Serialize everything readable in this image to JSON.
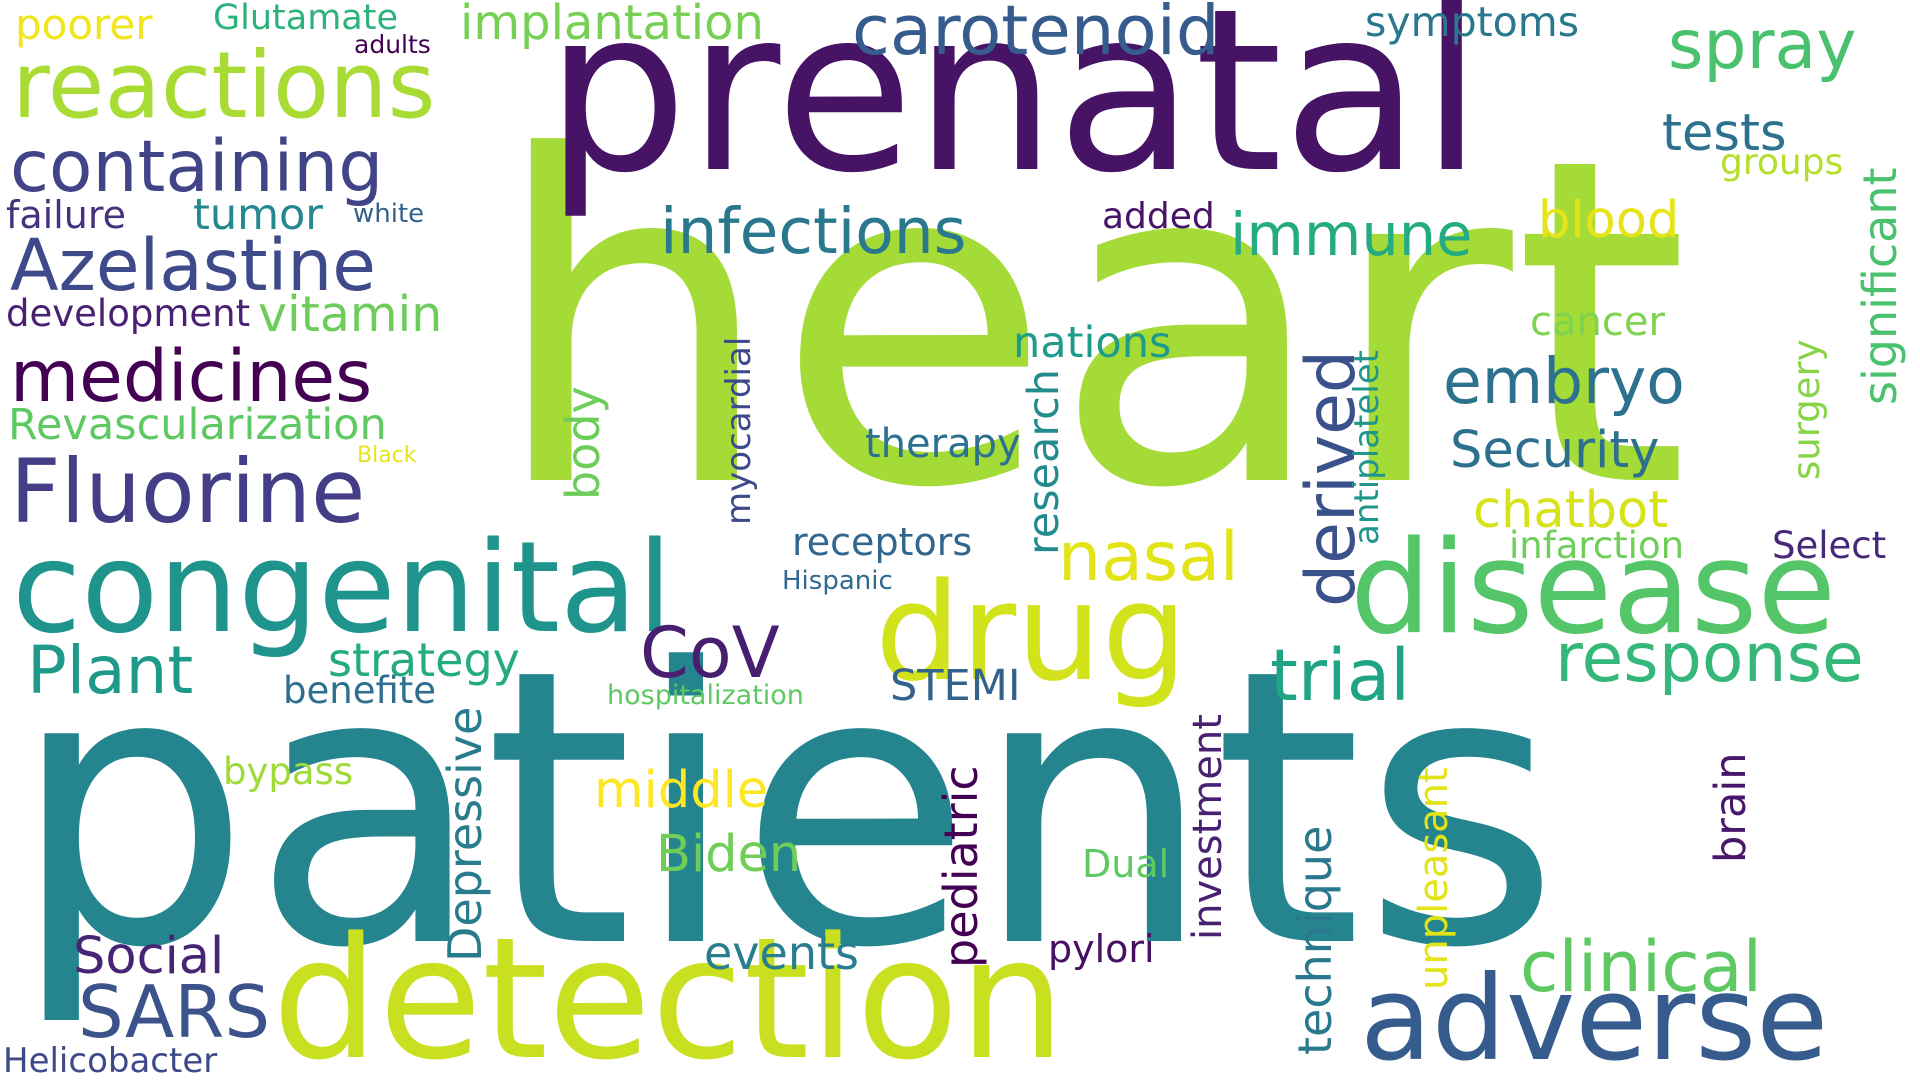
{
  "words": [
    {
      "text": "heart",
      "color": "#a5db36"
    },
    {
      "text": "patients",
      "color": "#25858e"
    },
    {
      "text": "prenatal",
      "color": "#471365"
    },
    {
      "text": "detection",
      "color": "#c8e020"
    },
    {
      "text": "disease",
      "color": "#54c568"
    },
    {
      "text": "congenital",
      "color": "#1f948c"
    },
    {
      "text": "adverse",
      "color": "#365c8d"
    },
    {
      "text": "drug",
      "color": "#d2e21b"
    },
    {
      "text": "reactions",
      "color": "#a8db34"
    },
    {
      "text": "containing",
      "color": "#414487"
    },
    {
      "text": "Fluorine",
      "color": "#433e85"
    },
    {
      "text": "Azelastine",
      "color": "#3e4a89"
    },
    {
      "text": "medicines",
      "color": "#440154"
    },
    {
      "text": "carotenoid",
      "color": "#365c8d"
    },
    {
      "text": "infections",
      "color": "#2a788e"
    },
    {
      "text": "immune",
      "color": "#25ab82"
    },
    {
      "text": "spray",
      "color": "#4ac16d"
    },
    {
      "text": "clinical",
      "color": "#5ec962"
    },
    {
      "text": "trial",
      "color": "#20a486"
    },
    {
      "text": "response",
      "color": "#35b779"
    },
    {
      "text": "nasal",
      "color": "#e2e418"
    },
    {
      "text": "derived",
      "color": "#3b518b"
    },
    {
      "text": "embryo",
      "color": "#2c728e"
    },
    {
      "text": "Plant",
      "color": "#1f9a8a"
    },
    {
      "text": "SARS",
      "color": "#3b528b"
    },
    {
      "text": "CoV",
      "color": "#481f70"
    },
    {
      "text": "Social",
      "color": "#482475"
    },
    {
      "text": "implantation",
      "color": "#75d054"
    },
    {
      "text": "Security",
      "color": "#2d708e"
    },
    {
      "text": "chatbot",
      "color": "#d8e219"
    },
    {
      "text": "tests",
      "color": "#2c718e"
    },
    {
      "text": "blood",
      "color": "#e5e419"
    },
    {
      "text": "significant",
      "color": "#4ac16d"
    },
    {
      "text": "vitamin",
      "color": "#6ccd5a"
    },
    {
      "text": "Revascularization",
      "color": "#5ec962"
    },
    {
      "text": "tumor",
      "color": "#23898e"
    },
    {
      "text": "failure",
      "color": "#46327e"
    },
    {
      "text": "white",
      "color": "#33638d"
    },
    {
      "text": "development",
      "color": "#482173"
    },
    {
      "text": "poorer",
      "color": "#f1e51d"
    },
    {
      "text": "Glutamate",
      "color": "#2db27d"
    },
    {
      "text": "adults",
      "color": "#440154"
    },
    {
      "text": "symptoms",
      "color": "#2a788e"
    },
    {
      "text": "groups",
      "color": "#b5de2b"
    },
    {
      "text": "added",
      "color": "#481467"
    },
    {
      "text": "cancer",
      "color": "#7fd34e"
    },
    {
      "text": "surgery",
      "color": "#86d549"
    },
    {
      "text": "nations",
      "color": "#1e9c89"
    },
    {
      "text": "antiplatelet",
      "color": "#1f958b"
    },
    {
      "text": "research",
      "color": "#238a8d"
    },
    {
      "text": "therapy",
      "color": "#2c718e"
    },
    {
      "text": "myocardial",
      "color": "#3e4989"
    },
    {
      "text": "body",
      "color": "#6ccd5a"
    },
    {
      "text": "Black",
      "color": "#e7e419"
    },
    {
      "text": "infarction",
      "color": "#6ece58"
    },
    {
      "text": "Select",
      "color": "#482878"
    },
    {
      "text": "receptors",
      "color": "#31678e"
    },
    {
      "text": "Hispanic",
      "color": "#306a8e"
    },
    {
      "text": "strategy",
      "color": "#25ab82"
    },
    {
      "text": "benefite",
      "color": "#2e6e8e"
    },
    {
      "text": "Depressive",
      "color": "#297b8e"
    },
    {
      "text": "hospitalization",
      "color": "#5ec962"
    },
    {
      "text": "STEMI",
      "color": "#33638d"
    },
    {
      "text": "bypass",
      "color": "#a0da39"
    },
    {
      "text": "middle",
      "color": "#fde725"
    },
    {
      "text": "Biden",
      "color": "#6ece58"
    },
    {
      "text": "pediatric",
      "color": "#440154"
    },
    {
      "text": "investment",
      "color": "#482173"
    },
    {
      "text": "technique",
      "color": "#2a788e"
    },
    {
      "text": "unpleasant",
      "color": "#e2e418"
    },
    {
      "text": "brain",
      "color": "#481769"
    },
    {
      "text": "Dual",
      "color": "#5ec962"
    },
    {
      "text": "pylori",
      "color": "#471063"
    },
    {
      "text": "events",
      "color": "#287d8e"
    },
    {
      "text": "Helicobacter",
      "color": "#3e4989"
    }
  ]
}
